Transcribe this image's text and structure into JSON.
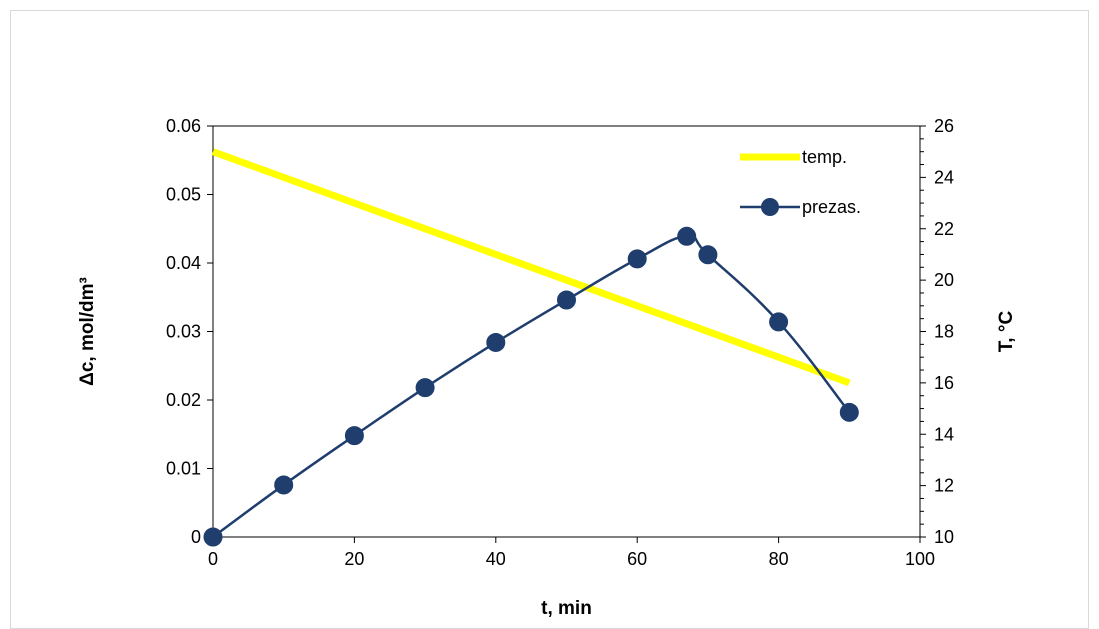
{
  "chart_data": {
    "type": "line",
    "title": "",
    "xlabel": "t, min",
    "ylabel_left": "Δc, mol/dm³",
    "ylabel_right": "T, °C",
    "xlim": [
      0,
      100
    ],
    "ylim_left": [
      0,
      0.06
    ],
    "ylim_right": [
      10,
      26
    ],
    "x_ticks": [
      "0",
      "20",
      "40",
      "60",
      "80",
      "100"
    ],
    "y_left_ticks": [
      "0",
      "0.01",
      "0.02",
      "0.03",
      "0.04",
      "0.05",
      "0.06"
    ],
    "y_right_ticks": [
      "10",
      "12",
      "14",
      "16",
      "18",
      "20",
      "22",
      "24",
      "26"
    ],
    "grid": false,
    "legend_position": "top-right",
    "series": [
      {
        "name": "temp.",
        "axis": "right",
        "color": "#FFFF00",
        "marker": "none",
        "x": [
          0,
          90
        ],
        "y": [
          25,
          16
        ]
      },
      {
        "name": "prezas.",
        "axis": "left",
        "color": "#1F3E6E",
        "marker": "circle",
        "x": [
          0,
          10,
          20,
          30,
          40,
          50,
          60,
          67,
          70,
          80,
          90
        ],
        "y": [
          0,
          0.0076,
          0.0148,
          0.0218,
          0.0284,
          0.0346,
          0.0406,
          0.0439,
          0.0412,
          0.0314,
          0.0182
        ]
      }
    ]
  }
}
